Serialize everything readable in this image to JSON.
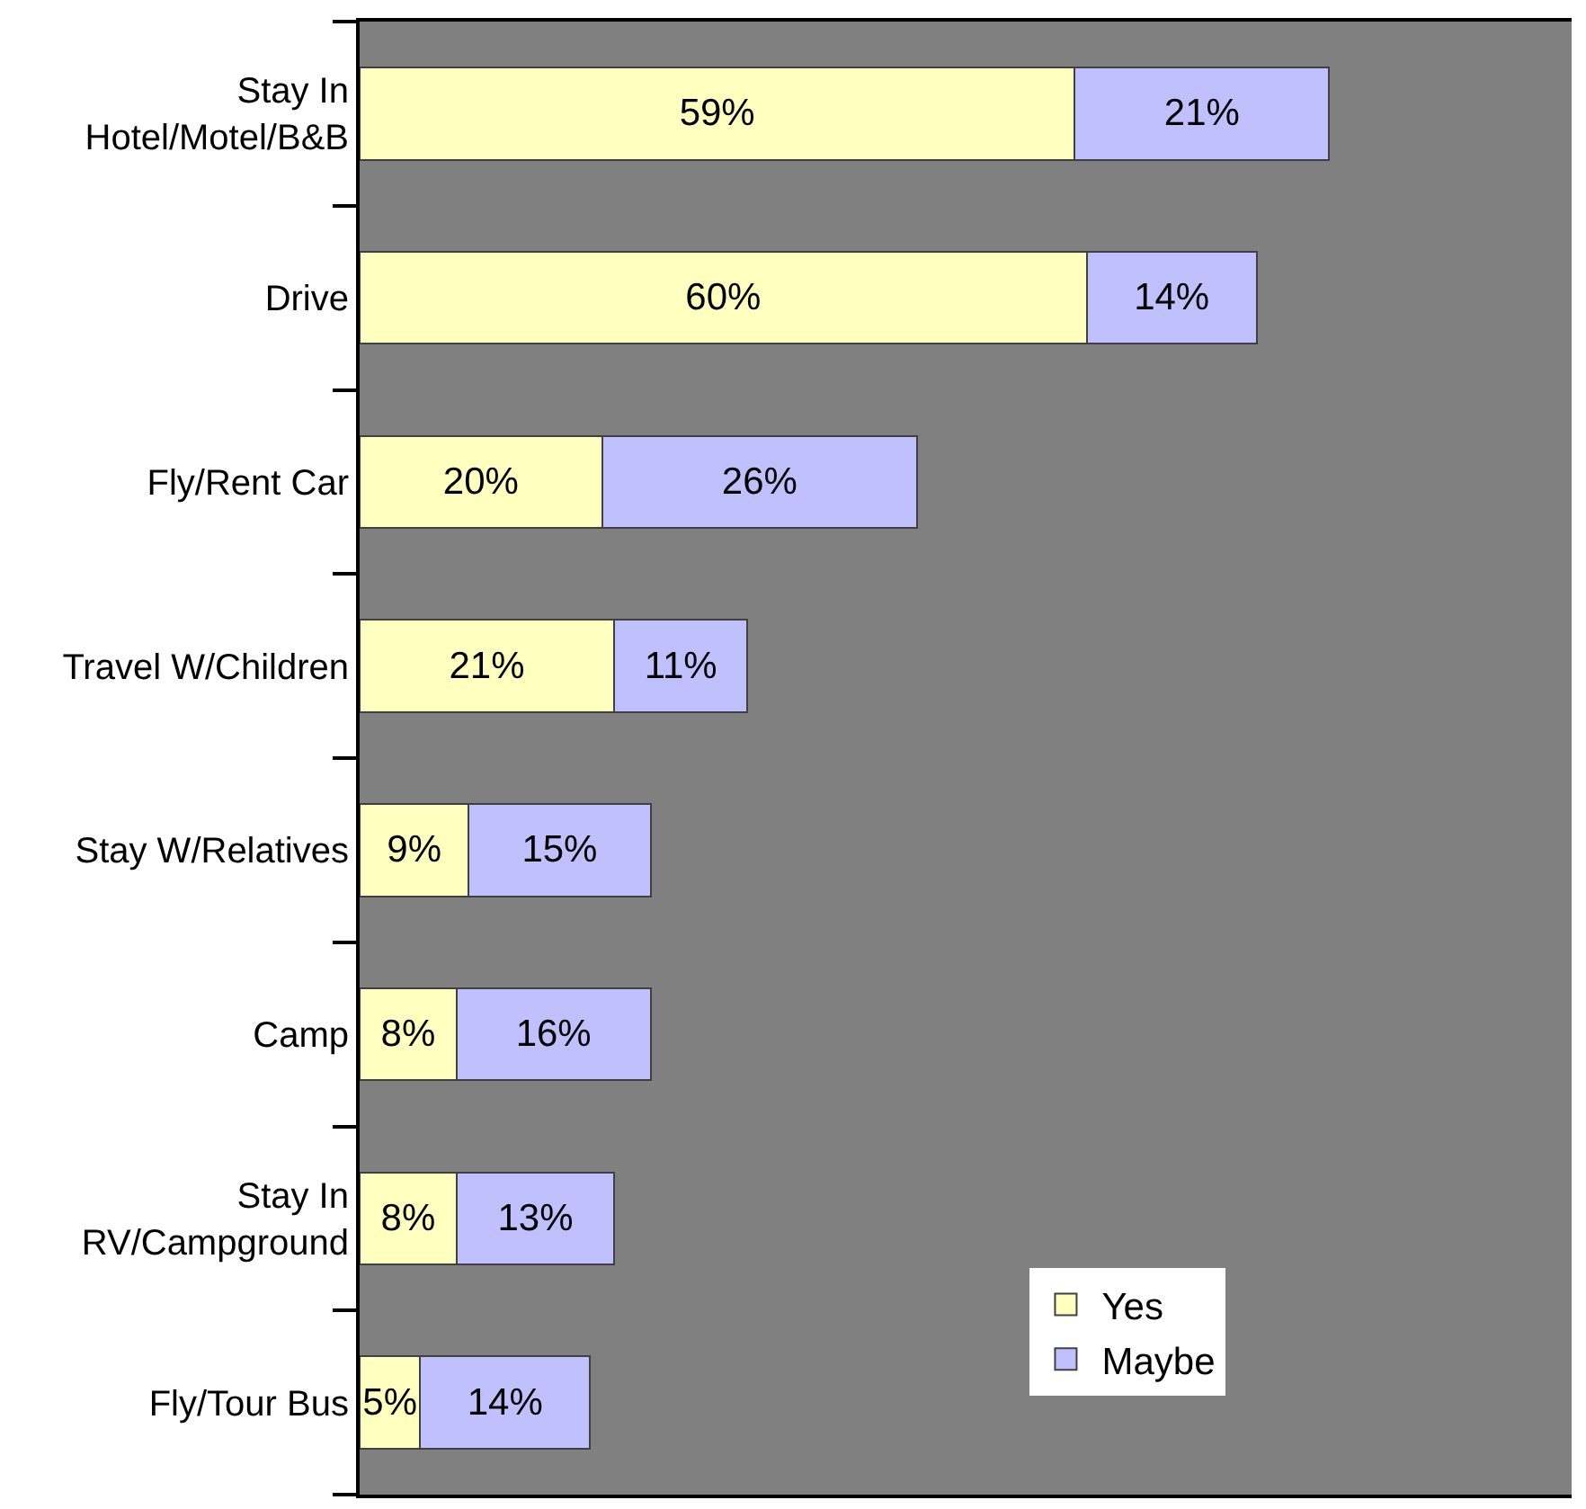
{
  "chart_data": {
    "type": "bar",
    "orientation": "horizontal",
    "stacked": true,
    "categories": [
      "Stay In Hotel/Motel/B&B",
      "Drive",
      "Fly/Rent Car",
      "Travel W/Children",
      "Stay W/Relatives",
      "Camp",
      "Stay In RV/Campground",
      "Fly/Tour Bus"
    ],
    "series": [
      {
        "name": "Yes",
        "color": "#ffffc0",
        "values": [
          59,
          60,
          20,
          21,
          9,
          8,
          8,
          5
        ],
        "value_labels": [
          "59%",
          "60%",
          "20%",
          "21%",
          "9%",
          "8%",
          "8%",
          "5%"
        ]
      },
      {
        "name": "Maybe",
        "color": "#c0c0ff",
        "values": [
          21,
          14,
          26,
          11,
          15,
          16,
          13,
          14
        ],
        "value_labels": [
          "21%",
          "14%",
          "26%",
          "11%",
          "15%",
          "16%",
          "13%",
          "14%"
        ]
      }
    ],
    "legend": "bottom right",
    "tick_labels": "y"
  }
}
